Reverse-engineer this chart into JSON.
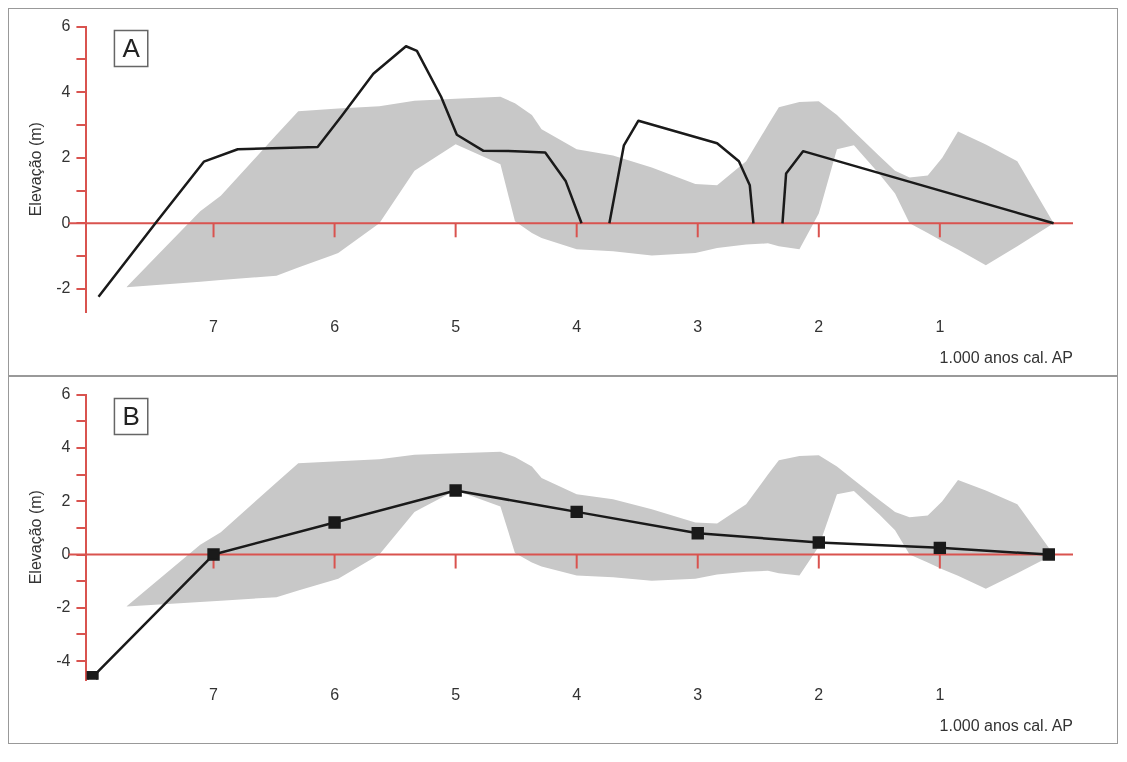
{
  "chart_data": [
    {
      "type": "line",
      "annotations": [
        "A"
      ],
      "xlabel": "1.000 anos cal. AP",
      "ylabel": "Elevação (m)",
      "xlim": [
        8.05,
        -0.1
      ],
      "xticks": [
        7,
        6,
        5,
        4,
        3,
        2,
        1
      ],
      "ylim": [
        -2.7,
        6
      ],
      "yticks": [
        -2,
        {
          "value": -1,
          "label": null
        },
        0,
        {
          "value": 1,
          "label": null
        },
        2,
        {
          "value": 3,
          "label": null
        },
        4,
        {
          "value": 5,
          "label": null
        },
        6
      ],
      "grid": false,
      "legend": false,
      "ref_lines": [
        {
          "axis": "y",
          "value": 0,
          "color": "#d9534f"
        }
      ],
      "series": [
        {
          "type": "line",
          "color": "#c8c8c8",
          "x": [
            7.72,
            7.11,
            6.94,
            6.48,
            6.3,
            5.97,
            5.63,
            5.34,
            5.0,
            4.63,
            4.51,
            4.37,
            4.29,
            4.0,
            3.7,
            3.38,
            3.02,
            2.84,
            2.6,
            2.42,
            2.33,
            2.16,
            2.0,
            1.85,
            1.71,
            1.5,
            1.37,
            1.25,
            1.1,
            0.98,
            0.85,
            0.62,
            0.36,
            0.06
          ],
          "values": [
            null,
            null,
            null,
            null,
            null,
            null,
            null,
            null,
            null,
            null,
            null,
            null,
            null,
            null,
            null,
            null,
            null,
            null,
            null,
            null,
            null,
            null,
            null,
            null,
            null,
            null,
            null,
            null,
            null,
            null,
            null,
            null,
            null,
            null
          ],
          "upper": [
            -1.95,
            0.37,
            0.84,
            2.7,
            3.42,
            3.5,
            3.57,
            3.74,
            3.8,
            3.86,
            3.66,
            3.3,
            2.87,
            2.26,
            2.07,
            1.7,
            1.2,
            1.16,
            1.89,
            3.0,
            3.54,
            3.7,
            3.72,
            3.3,
            2.8,
            2.05,
            1.6,
            1.4,
            1.46,
            2.0,
            2.8,
            2.4,
            1.89,
            0
          ],
          "lower": [
            -1.95,
            -1.78,
            -1.73,
            -1.6,
            -1.35,
            -0.91,
            0,
            1.6,
            2.41,
            1.8,
            0.06,
            -0.3,
            -0.45,
            -0.79,
            -0.85,
            -0.98,
            -0.91,
            -0.75,
            -0.65,
            -0.61,
            -0.7,
            -0.79,
            0.3,
            2.26,
            2.38,
            1.5,
            0.91,
            0,
            -0.3,
            -0.55,
            -0.8,
            -1.28,
            -0.7,
            0
          ]
        },
        {
          "type": "line",
          "color": "#1a1a1a",
          "marker": "none",
          "x": [
            7.95,
            7.48,
            7.08,
            6.8,
            6.14,
            5.94,
            5.68,
            5.41,
            5.32,
            5.12,
            4.99,
            4.77,
            4.51,
            4.26,
            4.09,
            3.96,
            3.85,
            3.73,
            3.61,
            3.49,
            2.84,
            2.66,
            2.57,
            2.54,
            2.42,
            2.3,
            2.27,
            2.13,
            0.06
          ],
          "values": [
            -2.24,
            0,
            1.88,
            2.26,
            2.33,
            3.28,
            4.56,
            5.4,
            5.26,
            3.86,
            2.7,
            2.21,
            2.2,
            2.16,
            1.28,
            0,
            null,
            0,
            2.38,
            3.13,
            2.44,
            1.89,
            1.16,
            0,
            null,
            0,
            1.52,
            2.2,
            0
          ]
        }
      ]
    },
    {
      "type": "line",
      "annotations": [
        "B"
      ],
      "xlabel": "1.000 anos cal. AP",
      "ylabel": "Elevação (m)",
      "xlim": [
        8.05,
        -0.1
      ],
      "xticks": [
        7,
        6,
        5,
        4,
        3,
        2,
        1
      ],
      "ylim": [
        -4.7,
        6
      ],
      "yticks": [
        -4,
        {
          "value": -3,
          "label": null
        },
        -2,
        {
          "value": -1,
          "label": null
        },
        0,
        {
          "value": 1,
          "label": null
        },
        2,
        {
          "value": 3,
          "label": null
        },
        4,
        {
          "value": 5,
          "label": null
        },
        6
      ],
      "grid": false,
      "legend": false,
      "ref_lines": [
        {
          "axis": "y",
          "value": 0,
          "color": "#d9534f"
        }
      ],
      "series": [
        {
          "type": "line",
          "color": "#c8c8c8",
          "x": [
            7.72,
            7.11,
            6.94,
            6.48,
            6.3,
            5.97,
            5.63,
            5.34,
            5.0,
            4.63,
            4.51,
            4.37,
            4.29,
            4.0,
            3.7,
            3.38,
            3.02,
            2.84,
            2.6,
            2.42,
            2.33,
            2.16,
            2.0,
            1.85,
            1.71,
            1.5,
            1.37,
            1.25,
            1.1,
            0.98,
            0.85,
            0.62,
            0.36,
            0.06
          ],
          "values": [
            null,
            null,
            null,
            null,
            null,
            null,
            null,
            null,
            null,
            null,
            null,
            null,
            null,
            null,
            null,
            null,
            null,
            null,
            null,
            null,
            null,
            null,
            null,
            null,
            null,
            null,
            null,
            null,
            null,
            null,
            null,
            null,
            null,
            null
          ],
          "upper": [
            -1.95,
            0.37,
            0.84,
            2.7,
            3.42,
            3.5,
            3.57,
            3.74,
            3.8,
            3.86,
            3.66,
            3.3,
            2.87,
            2.26,
            2.07,
            1.7,
            1.2,
            1.16,
            1.89,
            3.0,
            3.54,
            3.7,
            3.72,
            3.3,
            2.8,
            2.05,
            1.6,
            1.4,
            1.46,
            2.0,
            2.8,
            2.4,
            1.89,
            0
          ],
          "lower": [
            -1.95,
            -1.78,
            -1.73,
            -1.6,
            -1.35,
            -0.91,
            0,
            1.6,
            2.41,
            1.8,
            0.06,
            -0.3,
            -0.45,
            -0.79,
            -0.85,
            -0.98,
            -0.91,
            -0.75,
            -0.65,
            -0.61,
            -0.7,
            -0.79,
            0.3,
            2.26,
            2.38,
            1.5,
            0.91,
            0,
            -0.3,
            -0.55,
            -0.8,
            -1.28,
            -0.7,
            0
          ]
        },
        {
          "type": "line",
          "color": "#1a1a1a",
          "marker": "square",
          "x": [
            8,
            7,
            6,
            5,
            4,
            3,
            2,
            1,
            0.1
          ],
          "values": [
            -4.6,
            0,
            1.2,
            2.4,
            1.6,
            0.8,
            0.45,
            0.25,
            0
          ]
        }
      ]
    }
  ]
}
